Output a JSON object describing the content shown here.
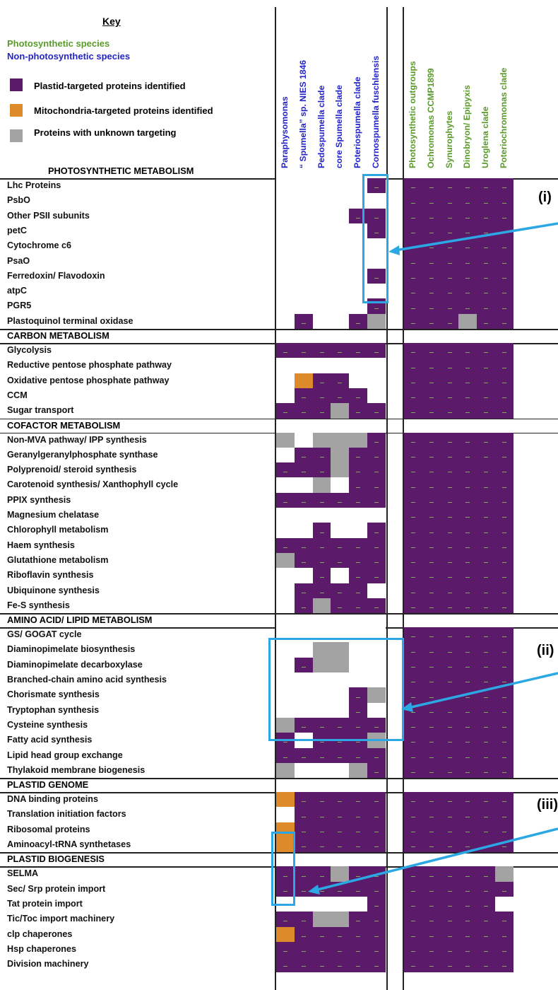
{
  "colors": {
    "present_plastid": "#5c1a6b",
    "present_mito": "#dd8a2a",
    "unknown": "#a3a3a3",
    "absent": "#ffffff",
    "photosynthetic_text": "#5a9a2a",
    "nonphotosynthetic_text": "#2424c8",
    "highlight": "#2ba8e4"
  },
  "key": {
    "title": "Key",
    "photosynthetic": "Photosynthetic species",
    "nonphotosynthetic": "Non-photosynthetic species",
    "legend": [
      {
        "label": "Plastid-targeted proteins identified",
        "color": "#5c1a6b"
      },
      {
        "label": "Mitochondria-targeted proteins identified",
        "color": "#dd8a2a"
      },
      {
        "label": "Proteins with unknown targeting",
        "color": "#a3a3a3"
      }
    ]
  },
  "columns": {
    "nonphotosynthetic": [
      "Paraphysomonas",
      "“ Spumella” sp. NIES 1846",
      "Pedospumella clade",
      "core Spumella clade",
      "Poteriospumella clade",
      "Cornospumella fuschlensis"
    ],
    "photosynthetic": [
      "Photosynthetic outgroups",
      "Ochromonas CCMP1899",
      "Synurophytes",
      "Dinobryon/ Epipyxis",
      "Uroglena clade",
      "Poteriochromonas clade"
    ]
  },
  "sections": [
    {
      "title": "PHOTOSYNTHETIC METABOLISM",
      "rows": [
        {
          "label": "Lhc Proteins",
          "np": "WWWWWP",
          "p": "PPPPPP"
        },
        {
          "label": "PsbO",
          "np": "WWWWWW",
          "p": "PPPPPP"
        },
        {
          "label": "Other PSII subunits",
          "np": "WWWWPP",
          "p": "PPPPPP"
        },
        {
          "label": "petC",
          "np": "WWWWWP",
          "p": "PPPPPP"
        },
        {
          "label": "Cytochrome c6",
          "np": "WWWWWW",
          "p": "PPPPPP"
        },
        {
          "label": "PsaO",
          "np": "WWWWWW",
          "p": "PPPPPP"
        },
        {
          "label": "Ferredoxin/ Flavodoxin",
          "np": "WWWWWP",
          "p": "PPPPPP"
        },
        {
          "label": "atpC",
          "np": "WWWWWW",
          "p": "PPPPPP"
        },
        {
          "label": "PGR5",
          "np": "WWWWWP",
          "p": "PPPPPP"
        },
        {
          "label": "Plastoquinol terminal oxidase",
          "np": "WPWWPG",
          "p": "PPPGPP"
        }
      ]
    },
    {
      "title": "CARBON METABOLISM",
      "rows": [
        {
          "label": "Glycolysis",
          "np": "PPPPPP",
          "p": "PPPPPP"
        },
        {
          "label": "Reductive pentose phosphate pathway",
          "np": "WWWWWW",
          "p": "PPPPPP"
        },
        {
          "label": "Oxidative pentose phosphate pathway",
          "np": "WOPPWW",
          "p": "PPPPPP"
        },
        {
          "label": "CCM",
          "np": "WPPPPW",
          "p": "PPPPPP"
        },
        {
          "label": "Sugar transport",
          "np": "PPPGPP",
          "p": "PPPPPP"
        }
      ]
    },
    {
      "title": "COFACTOR METABOLISM",
      "rows": [
        {
          "label": "Non-MVA pathway/ IPP synthesis",
          "np": "GWGGGP",
          "p": "PPPPPP"
        },
        {
          "label": "Geranylgeranylphosphate synthase",
          "np": "WPPGPP",
          "p": "PPPPPP"
        },
        {
          "label": "Polyprenoid/ steroid synthesis",
          "np": "PPPGPP",
          "p": "PPPPPP"
        },
        {
          "label": "Carotenoid synthesis/ Xanthophyll cycle",
          "np": "WWGWPP",
          "p": "PPPPPP"
        },
        {
          "label": "PPIX synthesis",
          "np": "PPPPPP",
          "p": "PPPPPP"
        },
        {
          "label": "Magnesium chelatase",
          "np": "WWWWWW",
          "p": "PPPPPP"
        },
        {
          "label": "Chlorophyll metabolism",
          "np": "WWPWWP",
          "p": "PPPPPP"
        },
        {
          "label": "Haem synthesis",
          "np": "PPPPPP",
          "p": "PPPPPP"
        },
        {
          "label": "Glutathione metabolism",
          "np": "GPPPPP",
          "p": "PPPPPP"
        },
        {
          "label": "Riboflavin synthesis",
          "np": "WWPWPP",
          "p": "PPPPPP"
        },
        {
          "label": "Ubiquinone synthesis",
          "np": "WPPPPW",
          "p": "PPPPPP"
        },
        {
          "label": "Fe-S synthesis",
          "np": "WPGPPP",
          "p": "PPPPPP"
        }
      ]
    },
    {
      "title": "AMINO ACID/ LIPID METABOLISM",
      "rows": [
        {
          "label": "GS/ GOGAT cycle",
          "np": "WWWWWW",
          "p": "PPPPPP"
        },
        {
          "label": "Diaminopimelate biosynthesis",
          "np": "WWGGWW",
          "p": "PPPPPP"
        },
        {
          "label": "Diaminopimelate decarboxylase",
          "np": "WPGGWW",
          "p": "PPPPPP"
        },
        {
          "label": "Branched-chain amino acid synthesis",
          "np": "WWWWWW",
          "p": "PPPPPP"
        },
        {
          "label": "Chorismate synthesis",
          "np": "WWWWPG",
          "p": "PPPPPP"
        },
        {
          "label": "Tryptophan synthesis",
          "np": "WWWWPW",
          "p": "PPPPPP"
        },
        {
          "label": "Cysteine synthesis",
          "np": "GPPPPP",
          "p": "PPPPPP"
        },
        {
          "label": "Fatty acid synthesis",
          "np": "PWPPPG",
          "p": "PPPPPP"
        },
        {
          "label": "Lipid head group exchange",
          "np": "PPPPPP",
          "p": "PPPPPP"
        },
        {
          "label": "Thylakoid membrane biogenesis",
          "np": "GWWWGP",
          "p": "PPPPPP"
        }
      ]
    },
    {
      "title": "PLASTID GENOME",
      "rows": [
        {
          "label": "DNA binding proteins",
          "np": "OPPPPP",
          "p": "PPPPPP"
        },
        {
          "label": "Translation initiation factors",
          "np": "WPPPPP",
          "p": "PPPPPP"
        },
        {
          "label": "Ribosomal proteins",
          "np": "OPPPPP",
          "p": "PPPPPP"
        },
        {
          "label": "Aminoacyl-tRNA synthetases",
          "np": "OPPPPP",
          "p": "PPPPPP"
        }
      ]
    },
    {
      "title": "PLASTID BIOGENESIS",
      "rows": [
        {
          "label": "SELMA",
          "np": "PPPGPP",
          "p": "PPPPPG"
        },
        {
          "label": "Sec/ Srp protein import",
          "np": "PPPPPP",
          "p": "PPPPPP"
        },
        {
          "label": "Tat protein import",
          "np": "WWWWWP",
          "p": "PPPPPW"
        },
        {
          "label": "Tic/Toc import machinery",
          "np": "PPGGPP",
          "p": "PPPPPP"
        },
        {
          "label": "clp chaperones",
          "np": "OPPPPP",
          "p": "PPPPPP"
        },
        {
          "label": "Hsp chaperones",
          "np": "PPPPPP",
          "p": "PPPPPP"
        },
        {
          "label": "Division machinery",
          "np": "PPPPPP",
          "p": "PPPPPP"
        }
      ]
    }
  ],
  "callouts": [
    "(i)",
    "(ii)",
    "(iii)"
  ]
}
